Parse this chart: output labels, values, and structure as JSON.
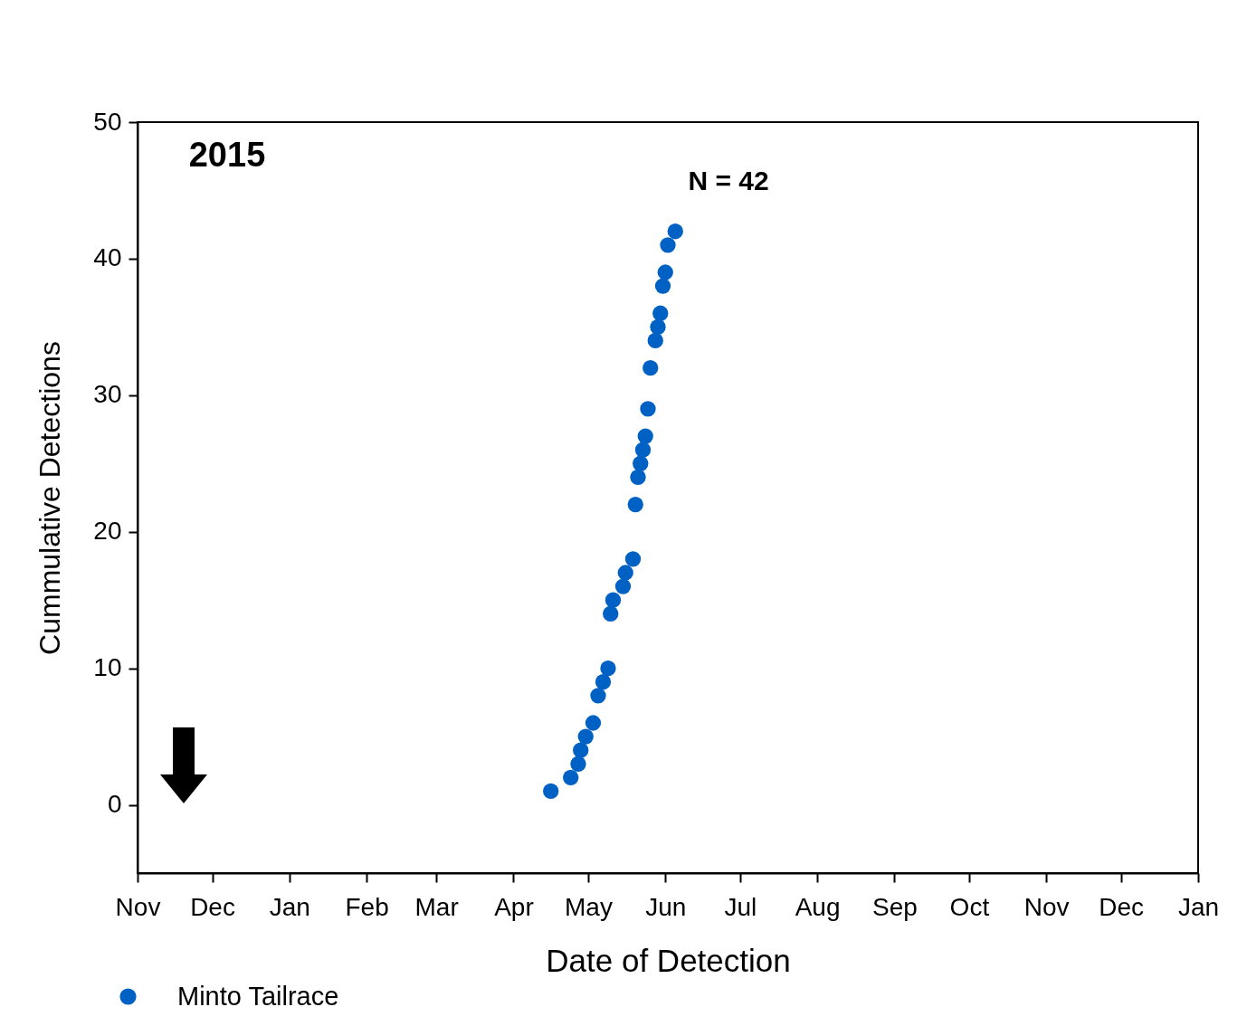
{
  "chart_data": {
    "type": "scatter",
    "xlabel": "Date of Detection",
    "ylabel": "Cummulative Detections",
    "xlim": [
      "2014-11-01",
      "2016-01-01"
    ],
    "xticks": [
      {
        "value": "2014-11-01",
        "label": "Nov"
      },
      {
        "value": "2014-12-01",
        "label": "Dec"
      },
      {
        "value": "2015-01-01",
        "label": "Jan"
      },
      {
        "value": "2015-02-01",
        "label": "Feb"
      },
      {
        "value": "2015-03-01",
        "label": "Mar"
      },
      {
        "value": "2015-04-01",
        "label": "Apr"
      },
      {
        "value": "2015-05-01",
        "label": "May"
      },
      {
        "value": "2015-06-01",
        "label": "Jun"
      },
      {
        "value": "2015-07-01",
        "label": "Jul"
      },
      {
        "value": "2015-08-01",
        "label": "Aug"
      },
      {
        "value": "2015-09-01",
        "label": "Sep"
      },
      {
        "value": "2015-10-01",
        "label": "Oct"
      },
      {
        "value": "2015-11-01",
        "label": "Nov"
      },
      {
        "value": "2015-12-01",
        "label": "Dec"
      },
      {
        "value": "2016-01-01",
        "label": "Jan"
      }
    ],
    "ylim": [
      -5,
      50
    ],
    "yticks": [
      0,
      10,
      20,
      30,
      40,
      50
    ],
    "x": [
      "2015-04-16",
      "2015-04-24",
      "2015-04-27",
      "2015-04-28",
      "2015-04-30",
      "2015-05-03",
      "2015-05-05",
      "2015-05-07",
      "2015-05-09",
      "2015-05-10",
      "2015-05-11",
      "2015-05-15",
      "2015-05-16",
      "2015-05-19",
      "2015-05-20",
      "2015-05-21",
      "2015-05-22",
      "2015-05-23",
      "2015-05-24",
      "2015-05-25",
      "2015-05-26",
      "2015-05-28",
      "2015-05-29",
      "2015-05-30",
      "2015-05-31",
      "2015-06-01",
      "2015-06-02",
      "2015-06-05"
    ],
    "series": [
      {
        "name": "Minto Tailrace",
        "color": "#0061c4",
        "values": [
          1,
          2,
          3,
          4,
          5,
          6,
          8,
          9,
          10,
          14,
          15,
          16,
          17,
          18,
          22,
          24,
          25,
          26,
          27,
          29,
          32,
          34,
          35,
          36,
          38,
          39,
          41,
          42
        ]
      }
    ],
    "annotations": [
      "2015",
      "N = 42"
    ],
    "legend": "bottom left",
    "marker": "circle"
  }
}
